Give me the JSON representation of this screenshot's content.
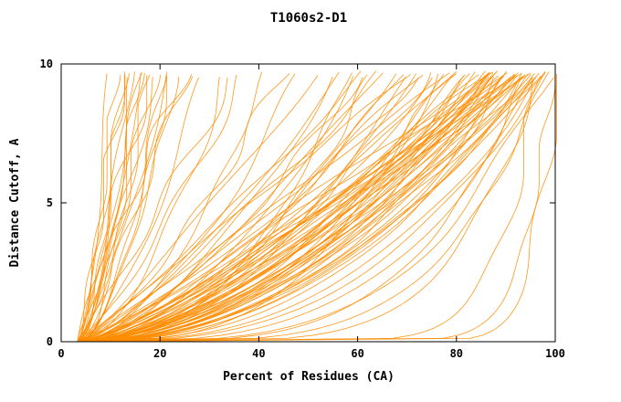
{
  "page": {
    "background": "#FFFFFF"
  },
  "chart_data": {
    "type": "line",
    "title": "T1060s2-D1",
    "xlabel": "Percent of Residues (CA)",
    "ylabel": "Distance Cutoff, A",
    "xlim": [
      0,
      100
    ],
    "ylim": [
      0,
      10
    ],
    "x_ticks": [
      0,
      20,
      40,
      60,
      80,
      100
    ],
    "y_ticks": [
      0,
      5,
      10
    ],
    "grid": false,
    "legend": "none",
    "curve_color": "#FF8C00",
    "axis_color": "#000000",
    "background_color": "#FFFFFF",
    "curve_model": "x(y) = x0 + (xmax - x0) * (y / 10)^a ; each curve entry = [x0, xmax, a]; y runs 0..~9.7",
    "curves": [
      [
        4.0,
        100,
        0.5
      ],
      [
        3.5,
        99,
        0.55
      ],
      [
        4.2,
        98.5,
        0.48
      ],
      [
        3.8,
        98,
        0.62
      ],
      [
        4.5,
        97.5,
        0.45
      ],
      [
        3.2,
        97,
        0.58
      ],
      [
        4.8,
        96.5,
        0.52
      ],
      [
        3.6,
        96,
        0.65
      ],
      [
        4.1,
        95.5,
        0.47
      ],
      [
        3.9,
        95,
        0.6
      ],
      [
        4.3,
        94.5,
        0.55
      ],
      [
        3.4,
        94,
        0.5
      ],
      [
        4.6,
        93.5,
        0.68
      ],
      [
        3.7,
        93,
        0.46
      ],
      [
        4.0,
        92.5,
        0.57
      ],
      [
        4.4,
        92,
        0.63
      ],
      [
        3.3,
        91.5,
        0.49
      ],
      [
        4.7,
        91,
        0.54
      ],
      [
        3.5,
        90.5,
        0.66
      ],
      [
        4.2,
        90,
        0.51
      ],
      [
        3.8,
        89.5,
        0.59
      ],
      [
        4.5,
        89,
        0.44
      ],
      [
        3.6,
        88.5,
        0.61
      ],
      [
        4.1,
        88,
        0.53
      ],
      [
        3.9,
        87.5,
        0.7
      ],
      [
        4.3,
        87,
        0.48
      ],
      [
        3.4,
        86.5,
        0.56
      ],
      [
        4.6,
        86,
        0.64
      ],
      [
        3.7,
        85.5,
        0.5
      ],
      [
        4.0,
        85,
        0.58
      ],
      [
        4.4,
        96,
        0.72
      ],
      [
        3.3,
        95,
        0.4
      ],
      [
        4.7,
        94,
        0.75
      ],
      [
        3.5,
        93,
        0.42
      ],
      [
        4.2,
        92,
        0.78
      ],
      [
        3.8,
        98,
        0.38
      ],
      [
        4.5,
        97,
        0.8
      ],
      [
        3.6,
        99,
        0.36
      ],
      [
        4.1,
        96.5,
        0.85
      ],
      [
        3.9,
        95.5,
        0.9
      ],
      [
        4.3,
        91,
        0.82
      ],
      [
        3.4,
        90,
        0.88
      ],
      [
        4.6,
        89.5,
        0.74
      ],
      [
        3.7,
        88.5,
        0.92
      ],
      [
        4.0,
        87.5,
        0.76
      ],
      [
        4.4,
        99.5,
        0.28
      ],
      [
        3.3,
        98.8,
        0.22
      ],
      [
        4.7,
        97.8,
        0.32
      ],
      [
        3.5,
        96.8,
        0.18
      ],
      [
        4.2,
        94.8,
        0.25
      ],
      [
        4.0,
        84,
        0.55
      ],
      [
        3.6,
        82,
        0.6
      ],
      [
        4.3,
        80,
        0.5
      ],
      [
        3.8,
        78,
        0.65
      ],
      [
        4.1,
        76,
        0.58
      ],
      [
        3.5,
        74,
        0.7
      ],
      [
        4.5,
        72,
        0.52
      ],
      [
        3.9,
        70,
        0.62
      ],
      [
        4.2,
        68,
        0.56
      ],
      [
        3.7,
        66,
        0.72
      ],
      [
        4.4,
        64,
        0.48
      ],
      [
        3.4,
        62,
        0.66
      ],
      [
        4.6,
        60,
        0.54
      ],
      [
        3.8,
        58,
        0.74
      ],
      [
        4.0,
        56,
        0.6
      ],
      [
        4.3,
        83,
        0.78
      ],
      [
        3.6,
        79,
        0.44
      ],
      [
        4.5,
        75,
        0.82
      ],
      [
        3.9,
        71,
        0.46
      ],
      [
        4.1,
        67,
        0.86
      ],
      [
        3.5,
        63,
        0.9
      ],
      [
        4.4,
        59,
        0.42
      ],
      [
        3.7,
        81,
        0.95
      ],
      [
        4.2,
        77,
        0.35
      ],
      [
        3.8,
        73,
        1.0
      ],
      [
        3.2,
        10,
        0.6
      ],
      [
        3.5,
        11,
        0.7
      ],
      [
        3.8,
        12,
        0.55
      ],
      [
        3.4,
        13,
        0.8
      ],
      [
        3.6,
        14,
        0.65
      ],
      [
        3.9,
        15,
        0.75
      ],
      [
        3.3,
        16,
        0.58
      ],
      [
        3.7,
        17,
        0.85
      ],
      [
        4.0,
        18,
        0.62
      ],
      [
        3.5,
        19,
        0.72
      ],
      [
        3.8,
        20,
        0.9
      ],
      [
        3.4,
        21,
        0.56
      ],
      [
        3.6,
        22,
        0.78
      ],
      [
        3.9,
        24,
        0.64
      ],
      [
        3.3,
        26,
        0.88
      ],
      [
        3.7,
        12.5,
        0.95
      ],
      [
        4.0,
        15.5,
        0.5
      ],
      [
        3.5,
        18.5,
        1.05
      ],
      [
        3.8,
        22.5,
        0.6
      ],
      [
        3.4,
        25.5,
        1.1
      ],
      [
        3.6,
        30,
        0.7
      ],
      [
        3.9,
        34,
        0.6
      ],
      [
        3.3,
        38,
        0.8
      ],
      [
        3.7,
        42,
        0.55
      ],
      [
        4.0,
        46,
        0.75
      ],
      [
        3.5,
        50,
        0.65
      ],
      [
        3.8,
        52,
        0.85
      ],
      [
        3.4,
        36,
        0.95
      ],
      [
        4.5,
        99.5,
        0.06
      ],
      [
        5.0,
        97,
        0.09
      ],
      [
        4.0,
        100,
        0.045
      ]
    ]
  }
}
